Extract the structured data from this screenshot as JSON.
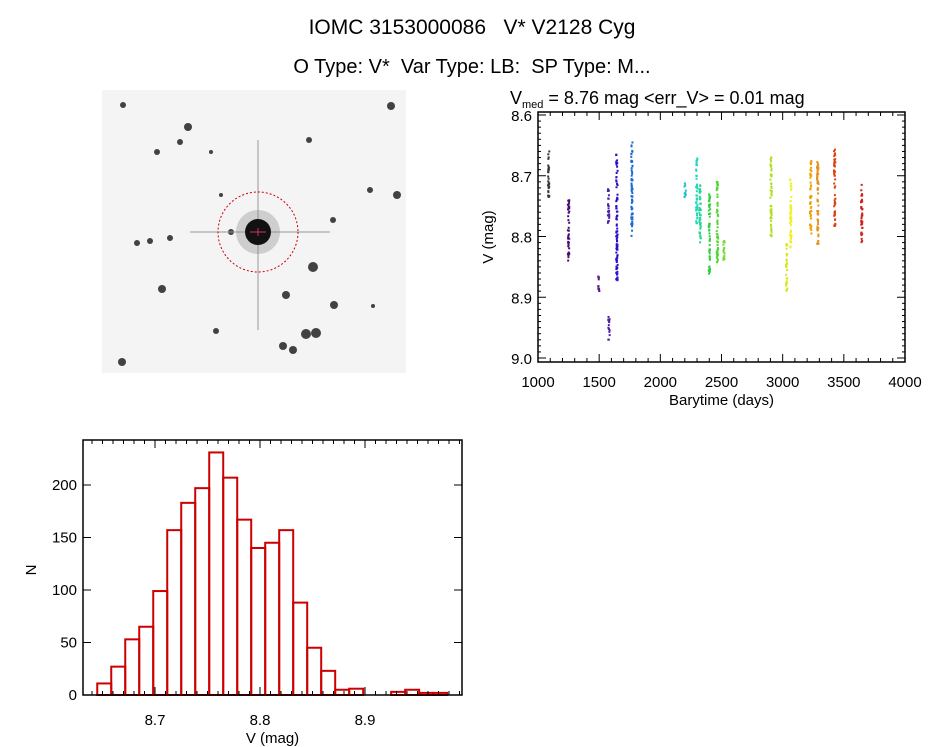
{
  "title": "IOMC 3153000086   V* V2128 Cyg",
  "subtitle": "O Type: V*  Var Type: LB:  SP Type: M...",
  "image_panel": {
    "circle_color": "#cc0000"
  },
  "chart_data": [
    {
      "type": "scatter",
      "title_main": "V",
      "title_sub": "med",
      "title_rest": " = 8.76 mag <err_V> = 0.01 mag",
      "xlabel": "Barytime (days)",
      "ylabel": "V (mag)",
      "xlim": [
        1000,
        4000
      ],
      "ylim": [
        9.0,
        8.6
      ],
      "y_inverted": true,
      "xticks": [
        "1000",
        "1500",
        "2000",
        "2500",
        "3000",
        "3500",
        "4000"
      ],
      "yticks": [
        "8.6",
        "8.7",
        "8.8",
        "8.9",
        "9.0"
      ],
      "grid": false,
      "colormap": "rainbow by time",
      "clusters": [
        {
          "x": 1087,
          "v": [
            8.66,
            8.74
          ],
          "color": "#3a3a3a"
        },
        {
          "x": 1250,
          "v": [
            8.74,
            8.84
          ],
          "color": "#4b0a6e"
        },
        {
          "x": 1495,
          "v": [
            8.86,
            8.89
          ],
          "color": "#5a1a8c"
        },
        {
          "x": 1577,
          "v": [
            8.72,
            8.78
          ],
          "color": "#5020a0"
        },
        {
          "x": 1580,
          "v": [
            8.93,
            8.97
          ],
          "color": "#5020a0"
        },
        {
          "x": 1645,
          "v": [
            8.665,
            8.88
          ],
          "color": "#2a10c8"
        },
        {
          "x": 1768,
          "v": [
            8.645,
            8.8
          ],
          "color": "#1a6ad0"
        },
        {
          "x": 2203,
          "v": [
            8.71,
            8.735
          ],
          "color": "#20c0c0"
        },
        {
          "x": 2298,
          "v": [
            8.67,
            8.78
          ],
          "color": "#20d8c0"
        },
        {
          "x": 2325,
          "v": [
            8.71,
            8.81
          ],
          "color": "#20d890"
        },
        {
          "x": 2402,
          "v": [
            8.73,
            8.865
          ],
          "color": "#30d040"
        },
        {
          "x": 2467,
          "v": [
            8.71,
            8.845
          ],
          "color": "#50d830"
        },
        {
          "x": 2521,
          "v": [
            8.805,
            8.84
          ],
          "color": "#70dc30"
        },
        {
          "x": 2905,
          "v": [
            8.67,
            8.805
          ],
          "color": "#b0e020"
        },
        {
          "x": 3033,
          "v": [
            8.81,
            8.89
          ],
          "color": "#d8e820"
        },
        {
          "x": 3066,
          "v": [
            8.705,
            8.82
          ],
          "color": "#f0f020"
        },
        {
          "x": 3229,
          "v": [
            8.675,
            8.795
          ],
          "color": "#f0a000"
        },
        {
          "x": 3287,
          "v": [
            8.675,
            8.815
          ],
          "color": "#e89020"
        },
        {
          "x": 3425,
          "v": [
            8.655,
            8.785
          ],
          "color": "#e04010"
        },
        {
          "x": 3646,
          "v": [
            8.715,
            8.815
          ],
          "color": "#d02020"
        }
      ]
    },
    {
      "type": "bar",
      "histogram": true,
      "xlabel": "V (mag)",
      "ylabel": "N",
      "bin_start": 8.645,
      "bin_width": 0.01333,
      "values": [
        11,
        27,
        53,
        65,
        99,
        157,
        183,
        197,
        231,
        207,
        167,
        140,
        145,
        157,
        88,
        45,
        23,
        5,
        6,
        0,
        0,
        3,
        5,
        2,
        2
      ],
      "xlim": [
        8.64,
        8.99
      ],
      "ylim": [
        0,
        242
      ],
      "xticks": [
        "8.7",
        "8.8",
        "8.9"
      ],
      "yticks": [
        "0",
        "50",
        "100",
        "150",
        "200"
      ],
      "bar_color": "#cc0000",
      "grid": false
    }
  ]
}
